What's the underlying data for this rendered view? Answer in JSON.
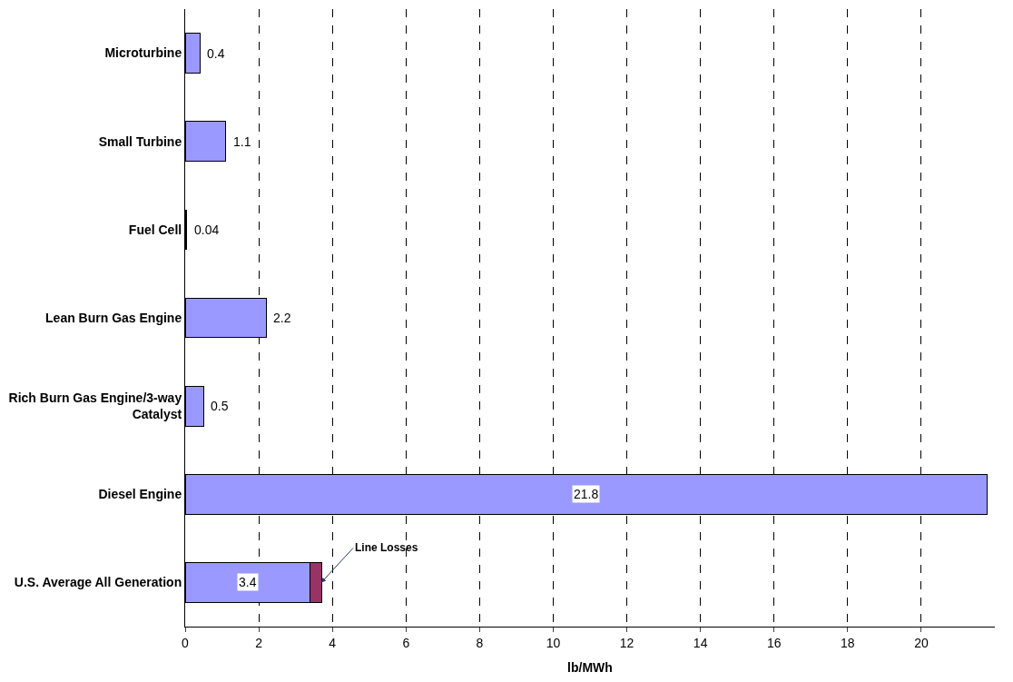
{
  "chart_data": {
    "type": "bar",
    "orientation": "horizontal",
    "stacked": true,
    "xlabel": "lb/MWh",
    "categories": [
      "Microturbine",
      "Small Turbine",
      "Fuel Cell",
      "Lean Burn Gas Engine",
      "Rich Burn Gas Engine/3-way Catalyst",
      "Diesel Engine",
      "U.S. Average All Generation"
    ],
    "series": [
      {
        "color": "#9999ff",
        "values": [
          0.4,
          1.1,
          0.04,
          2.2,
          0.5,
          21.8,
          3.4
        ],
        "value_labels": [
          "0.4",
          "1.1",
          "0.04",
          "2.2",
          "0.5",
          "21.8",
          "3.4"
        ]
      },
      {
        "color": "#993366",
        "values": [
          null,
          null,
          null,
          null,
          null,
          null,
          0.3
        ]
      }
    ],
    "annotations": [
      {
        "text": "Line Losses",
        "x": 3.7,
        "y": "U.S. Average All Generation"
      }
    ],
    "xlim": [
      0,
      22
    ],
    "xticks": [
      0,
      2,
      4,
      6,
      8,
      10,
      12,
      14,
      16,
      18,
      20
    ],
    "grid": "x"
  }
}
